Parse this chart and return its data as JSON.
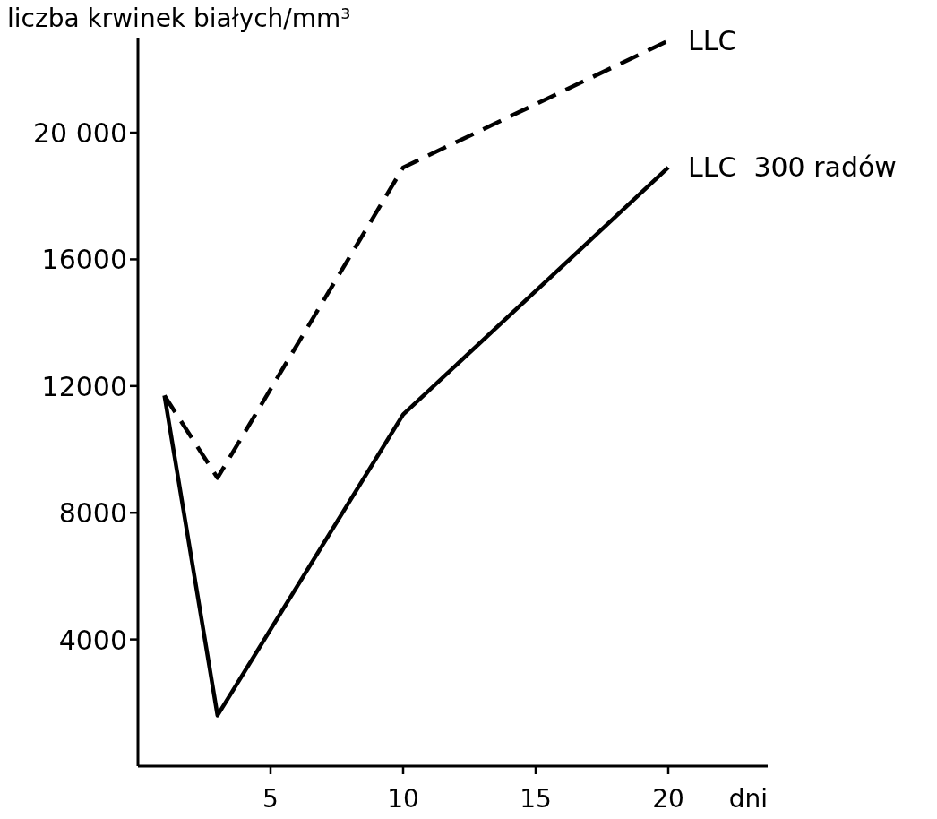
{
  "chart_data": {
    "type": "line",
    "xlabel": "dni",
    "ylabel": "liczba krwinek białych/mm³",
    "x": [
      1,
      3,
      10,
      20
    ],
    "series": [
      {
        "name": "LLC",
        "color": "#000000",
        "line_style": "dashed",
        "values": [
          11700,
          9100,
          18900,
          22900
        ]
      },
      {
        "name": "LLC  300 radów",
        "color": "#000000",
        "line_style": "solid",
        "values": [
          11700,
          1600,
          11100,
          18900
        ]
      }
    ],
    "xlim": [
      0,
      23.75
    ],
    "xticks": [
      5,
      10,
      15,
      20
    ],
    "ylim": [
      0,
      23000
    ],
    "yticks": [
      4000,
      8000,
      12000,
      16000,
      {
        "value": 20000,
        "label": "20 000"
      }
    ],
    "grid": false,
    "marker": "none"
  }
}
